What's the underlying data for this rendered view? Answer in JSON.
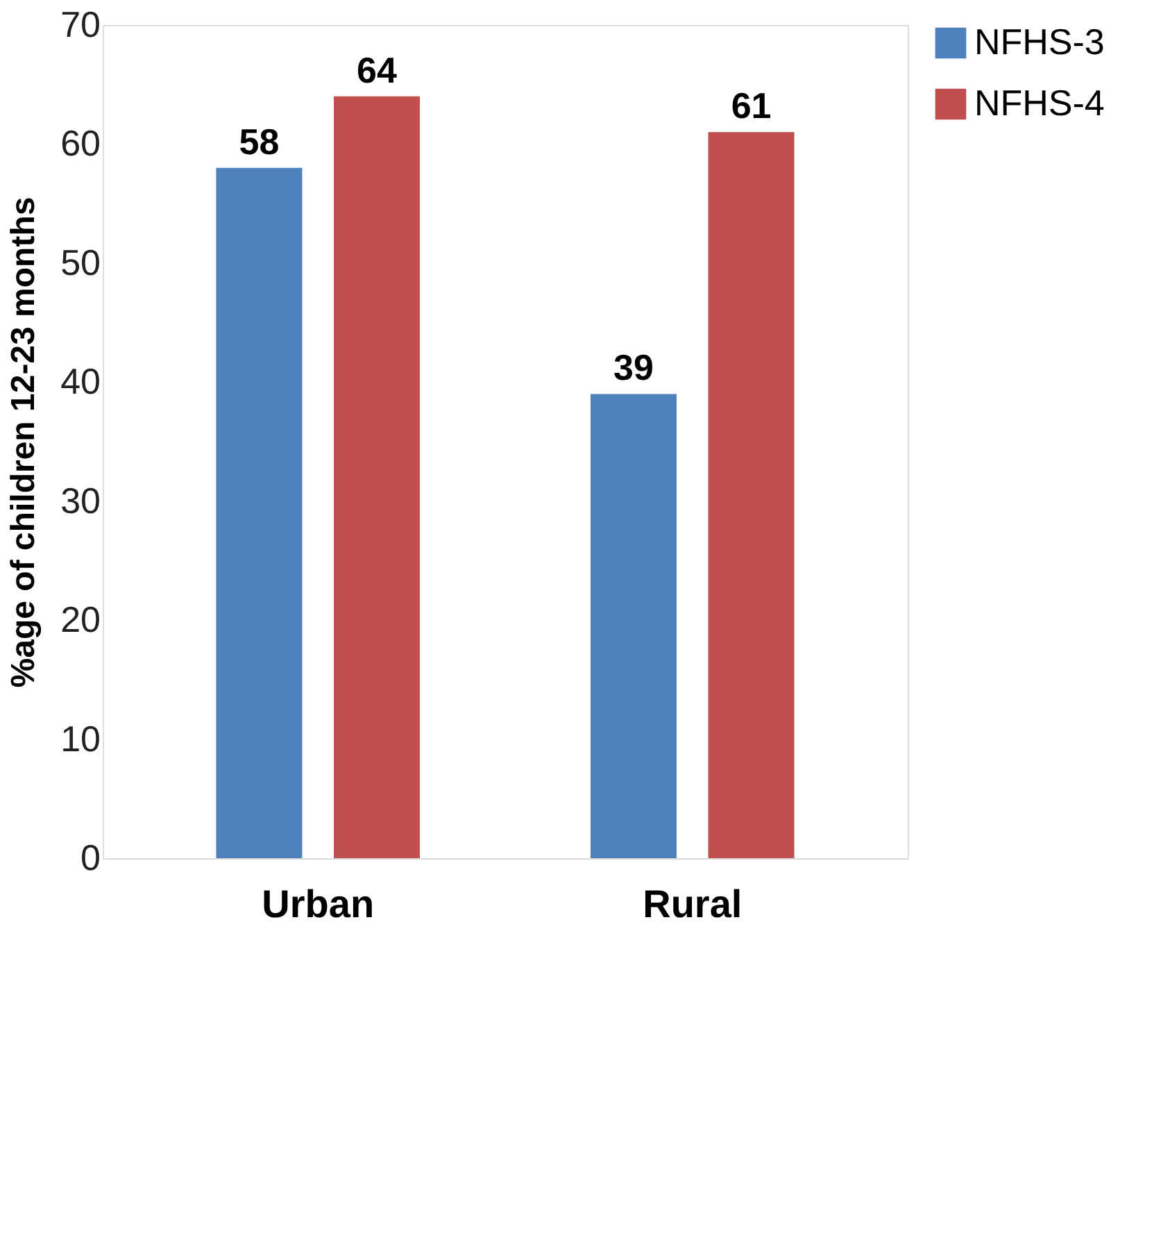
{
  "chart_data": {
    "type": "bar",
    "ylabel": "%age of children 12-23 months",
    "categories": [
      "Urban",
      "Rural"
    ],
    "series": [
      {
        "name": "NFHS-3",
        "color": "#4f81bd",
        "values": [
          58,
          39
        ]
      },
      {
        "name": "NFHS-4",
        "color": "#c0504d",
        "values": [
          64,
          61
        ]
      }
    ],
    "ylim": [
      0,
      70
    ],
    "yticks": [
      0,
      10,
      20,
      30,
      40,
      50,
      60,
      70
    ],
    "data_labels": true,
    "grid": false,
    "legend": "right"
  }
}
